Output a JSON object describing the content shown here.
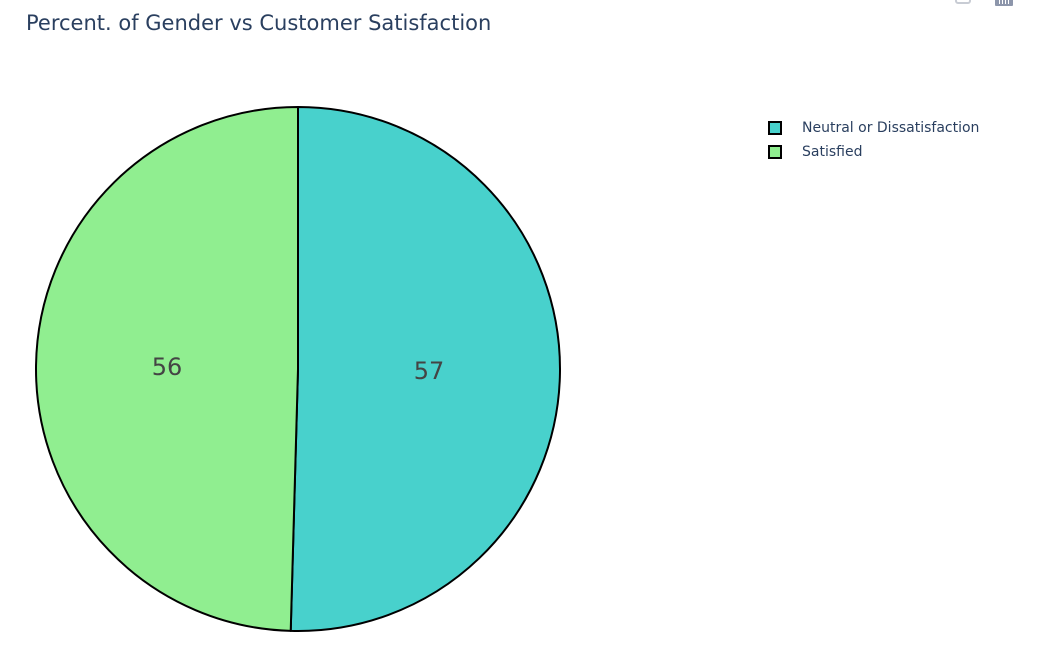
{
  "title": "Percent. of Gender vs Customer Satisfaction",
  "toolbar": {
    "icons": [
      "camera-icon",
      "bar-chart-icon"
    ]
  },
  "chart_data": {
    "type": "pie",
    "title": "Percent. of Gender vs Customer Satisfaction",
    "slices": [
      {
        "label": "Neutral or Dissatisfaction",
        "value": 57,
        "color": "#48d1cc"
      },
      {
        "label": "Satisfied",
        "value": 56,
        "color": "#90ee90"
      }
    ],
    "text_info": "value",
    "direction": "clockwise",
    "start_angle_deg": 90,
    "slice_border_color": "#000000",
    "legend_position": "top-right"
  }
}
